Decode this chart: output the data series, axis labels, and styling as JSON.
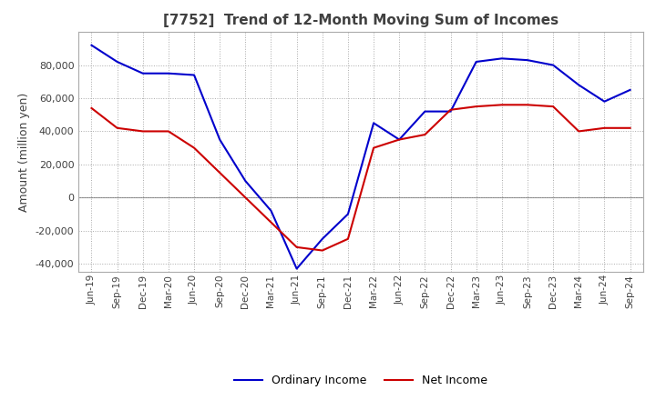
{
  "title": "[7752]  Trend of 12-Month Moving Sum of Incomes",
  "ylabel": "Amount (million yen)",
  "ylim": [
    -45000,
    100000
  ],
  "yticks": [
    -40000,
    -20000,
    0,
    20000,
    40000,
    60000,
    80000
  ],
  "x_labels": [
    "Jun-19",
    "Sep-19",
    "Dec-19",
    "Mar-20",
    "Jun-20",
    "Sep-20",
    "Dec-20",
    "Mar-21",
    "Jun-21",
    "Sep-21",
    "Dec-21",
    "Mar-22",
    "Jun-22",
    "Sep-22",
    "Dec-22",
    "Mar-23",
    "Jun-23",
    "Sep-23",
    "Dec-23",
    "Mar-24",
    "Jun-24",
    "Sep-24"
  ],
  "ordinary_income": [
    92000,
    82000,
    75000,
    75000,
    74000,
    35000,
    10000,
    -8000,
    -43000,
    -25000,
    -10000,
    45000,
    35000,
    52000,
    52000,
    82000,
    84000,
    83000,
    80000,
    68000,
    58000,
    65000
  ],
  "net_income": [
    54000,
    42000,
    40000,
    40000,
    30000,
    15000,
    0,
    -15000,
    -30000,
    -32000,
    -25000,
    30000,
    35000,
    38000,
    53000,
    55000,
    56000,
    56000,
    55000,
    40000,
    42000,
    42000
  ],
  "ordinary_color": "#0000cc",
  "net_color": "#cc0000",
  "grid_color": "#aaaaaa",
  "background_color": "#ffffff",
  "title_color": "#404040",
  "legend_labels": [
    "Ordinary Income",
    "Net Income"
  ]
}
